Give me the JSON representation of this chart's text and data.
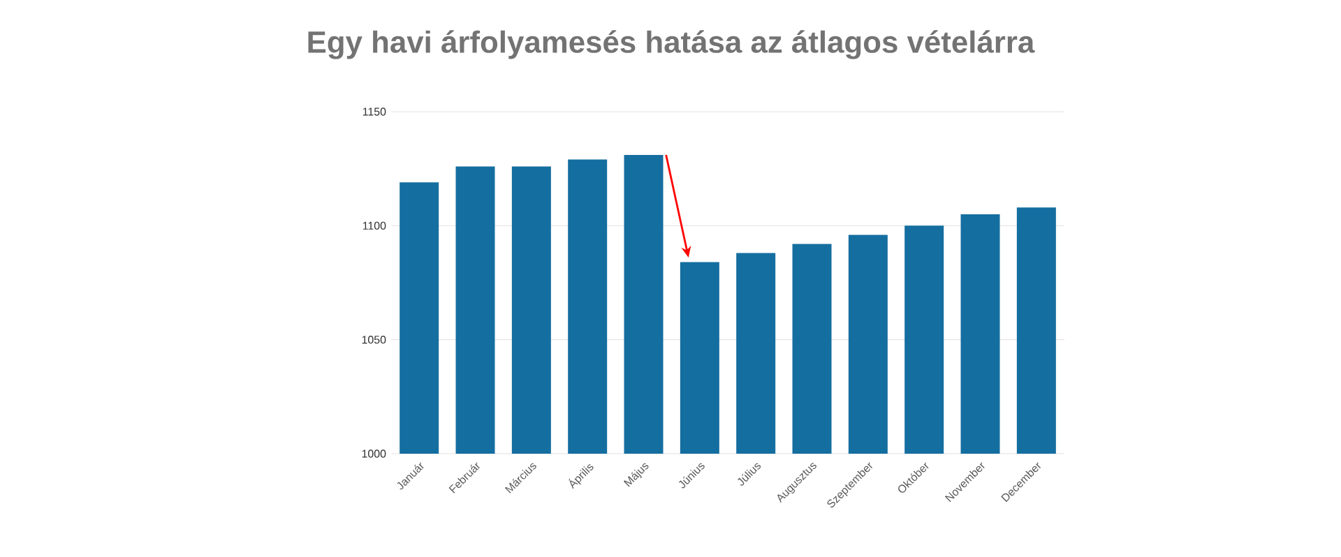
{
  "chart_data": {
    "type": "bar",
    "title": "Egy havi árfolyamesés hatása az átlagos vételárra",
    "categories": [
      "Január",
      "Február",
      "Március",
      "Április",
      "Május",
      "Június",
      "Július",
      "Augusztus",
      "Szeptember",
      "Október",
      "November",
      "December"
    ],
    "values": [
      1119,
      1126,
      1126,
      1129,
      1131,
      1084,
      1088,
      1092,
      1096,
      1100,
      1105,
      1108
    ],
    "color": "#156ea0",
    "ylim": [
      1000,
      1150
    ],
    "yticks": [
      1000,
      1050,
      1100,
      1150
    ],
    "grid": "y"
  }
}
